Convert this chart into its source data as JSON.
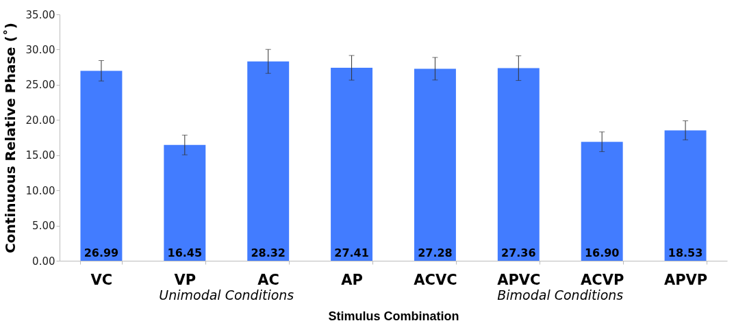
{
  "chart_data": {
    "type": "bar",
    "xlabel": "Stimulus Combination",
    "ylabel": "Continuous Relative Phase (˚)",
    "categories": [
      "VC",
      "VP",
      "AC",
      "AP",
      "ACVC",
      "APVC",
      "ACVP",
      "APVP"
    ],
    "values": [
      26.99,
      16.45,
      28.32,
      27.41,
      27.28,
      27.36,
      16.9,
      18.53
    ],
    "value_labels": [
      "26.99",
      "16.45",
      "28.32",
      "27.41",
      "27.28",
      "27.36",
      "16.90",
      "18.53"
    ],
    "errors": [
      1.45,
      1.4,
      1.7,
      1.75,
      1.6,
      1.75,
      1.4,
      1.35
    ],
    "color": "#427cff",
    "ylim": [
      0,
      35
    ],
    "yticks": [
      {
        "value": 0,
        "label": "0.00"
      },
      {
        "value": 5,
        "label": "5.00"
      },
      {
        "value": 10,
        "label": "10.00"
      },
      {
        "value": 15,
        "label": "15.00"
      },
      {
        "value": 20,
        "label": "20.00"
      },
      {
        "value": 25,
        "label": "25.00"
      },
      {
        "value": 30,
        "label": "30.00"
      },
      {
        "value": 35,
        "label": "35.00"
      }
    ],
    "annotations": [
      "Unimodal Conditions",
      "Bimodal Conditions"
    ],
    "grid": false
  }
}
